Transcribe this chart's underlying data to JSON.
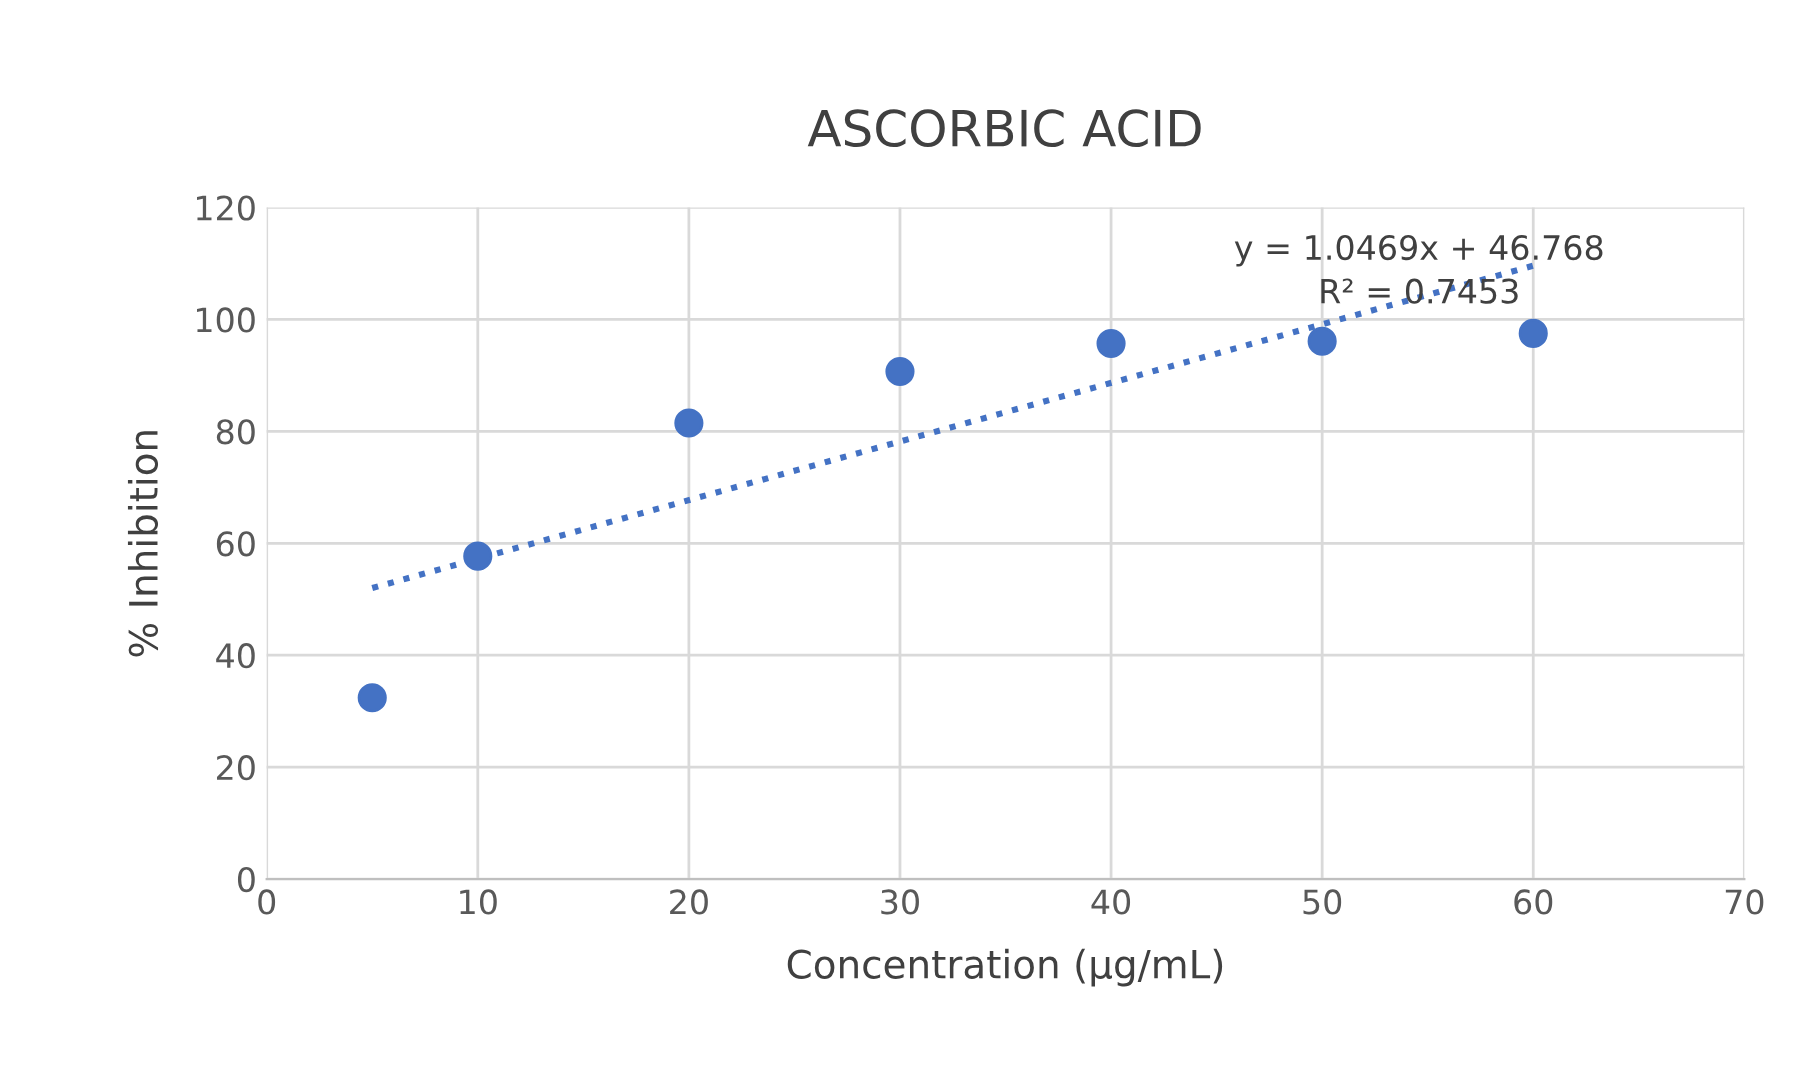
{
  "chart_data": {
    "type": "scatter",
    "title": "ASCORBIC ACID",
    "xlabel": "Concentration (µg/mL)",
    "ylabel": "% Inhibition",
    "x": [
      5,
      10,
      20,
      30,
      40,
      50,
      60
    ],
    "series": [
      {
        "color": "#4472c4",
        "marker": "circle",
        "values": [
          32.4,
          57.7,
          81.5,
          90.7,
          95.7,
          96.1,
          97.5
        ]
      },
      {
        "type": "line",
        "color": "#4472c4",
        "marker": "none",
        "line_style": "dotted",
        "x": [
          5,
          60
        ],
        "values": [
          52.0,
          109.6
        ]
      }
    ],
    "annotations": [
      "y = 1.0469x + 46.768",
      "R² = 0.7453"
    ],
    "xlim": [
      0,
      70
    ],
    "xticks": [
      0,
      10,
      20,
      30,
      40,
      50,
      60,
      70
    ],
    "ylim": [
      0,
      120
    ],
    "yticks": [
      0,
      20,
      40,
      60,
      80,
      100,
      120
    ],
    "grid": true,
    "legend": false
  }
}
